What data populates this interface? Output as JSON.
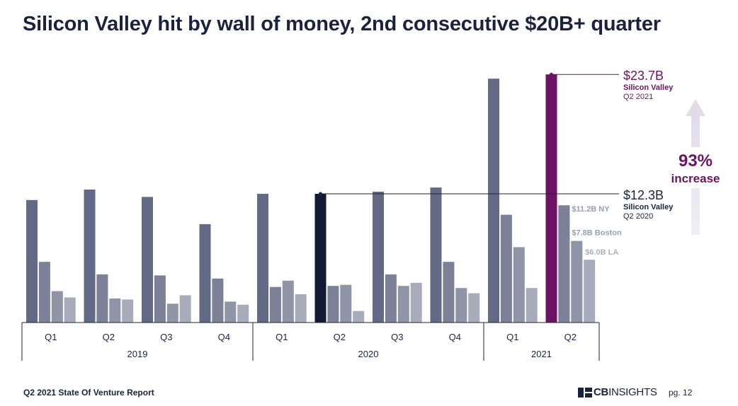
{
  "chart_data": {
    "type": "bar",
    "title": "Silicon Valley hit by wall of money, 2nd consecutive $20B+ quarter",
    "series_names": [
      "Silicon Valley",
      "NY",
      "Boston",
      "LA"
    ],
    "years": [
      {
        "label": "2019",
        "quarters": [
          "Q1",
          "Q2",
          "Q3",
          "Q4"
        ]
      },
      {
        "label": "2020",
        "quarters": [
          "Q1",
          "Q2",
          "Q3",
          "Q4"
        ]
      },
      {
        "label": "2021",
        "quarters": [
          "Q1",
          "Q2"
        ]
      }
    ],
    "values": [
      [
        11.7,
        5.8,
        3.0,
        2.4
      ],
      [
        12.7,
        4.6,
        2.3,
        2.2
      ],
      [
        12.0,
        4.5,
        1.8,
        2.6
      ],
      [
        9.4,
        4.2,
        2.0,
        1.7
      ],
      [
        12.3,
        3.4,
        4.0,
        2.7
      ],
      [
        12.3,
        3.5,
        3.6,
        1.1
      ],
      [
        12.5,
        4.6,
        3.5,
        3.8
      ],
      [
        12.9,
        5.8,
        3.3,
        2.8
      ],
      [
        23.3,
        10.3,
        7.2,
        3.3
      ],
      [
        23.7,
        11.2,
        7.8,
        6.0
      ]
    ],
    "ylim": [
      0,
      25
    ],
    "grid": false,
    "highlight": {
      "sv_q2_2020_index": 5,
      "sv_q2_2021_index": 9
    },
    "annotations": {
      "sv_2021_value": "$23.7B",
      "sv_2021_line1": "Silicon Valley",
      "sv_2021_line2": "Q2 2021",
      "sv_2020_value": "$12.3B",
      "sv_2020_line1": "Silicon Valley",
      "sv_2020_line2": "Q2 2020",
      "ny_label": "$11.2B NY",
      "boston_label": "$7.8B Boston",
      "la_label": "$6.0B LA",
      "increase_pct": "93%",
      "increase_word": "increase"
    },
    "colors": {
      "sv": "#636a86",
      "ny": "#7c8197",
      "boston": "#9094a7",
      "la": "#a8abb9",
      "highlight_2020": "#131a36",
      "highlight_2021": "#6e1266",
      "increase_text": "#6e1266",
      "arrow": "#e4e0ec",
      "text_dark": "#1a2240",
      "label_gray": "#9a9eae"
    }
  },
  "footer": {
    "report": "Q2 2021 State Of Venture Report",
    "logo_bold": "CB",
    "logo_light": "INSIGHTS",
    "page": "pg. 12"
  }
}
